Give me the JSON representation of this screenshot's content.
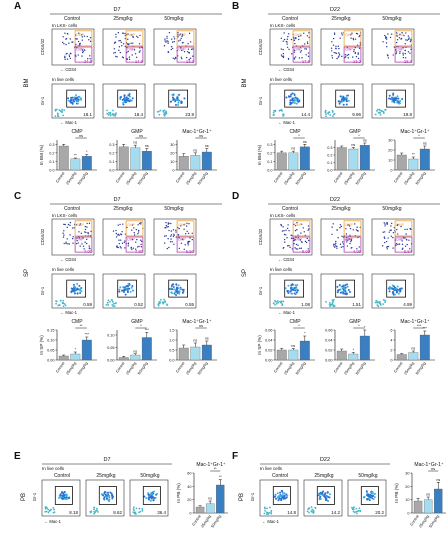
{
  "panels": [
    {
      "letter": "A",
      "day": "D7",
      "tissue": "BM",
      "gate1": "In LKS- cells",
      "gate2": "In live cells",
      "cmp_pct": [
        "24.5",
        "14.9",
        "13.2"
      ],
      "gmp_pct": [
        "",
        "",
        ""
      ],
      "mac_pct": [
        "18.1",
        "18.4",
        "23.9"
      ],
      "bar_ylabel": "In BM (%)",
      "charts": [
        {
          "title": "CMP",
          "yticks": [
            "0.0",
            "0.1",
            "0.2",
            "0.3"
          ],
          "values": [
            0.28,
            0.13,
            0.16
          ],
          "errors": [
            0.02,
            0.01,
            0.02
          ],
          "ymax": 0.35,
          "sig": [
            "**",
            "*"
          ],
          "top_sig": "ns"
        },
        {
          "title": "GMP",
          "yticks": [
            "0.0",
            "0.1",
            "0.2",
            "0.3"
          ],
          "values": [
            0.27,
            0.26,
            0.22
          ],
          "errors": [
            0.03,
            0.03,
            0.03
          ],
          "ymax": 0.35,
          "sig": [
            "ns",
            "ns"
          ],
          "top_sig": "ns"
        },
        {
          "title": "Mac-1⁺Gr-1⁺",
          "yticks": [
            "0",
            "10",
            "20",
            "30"
          ],
          "values": [
            16,
            17,
            21
          ],
          "errors": [
            3,
            3,
            4
          ],
          "ymax": 35,
          "sig": [
            "ns",
            "ns"
          ],
          "top_sig": "ns"
        }
      ]
    },
    {
      "letter": "B",
      "day": "D22",
      "tissue": "BM",
      "gate1": "In LKS- cells",
      "gate2": "In live cells",
      "cmp_pct": [
        "17.6",
        "13.2",
        "18.3"
      ],
      "gmp_pct": [
        "",
        "",
        ""
      ],
      "mac_pct": [
        "14.4",
        "9.96",
        "19.8"
      ],
      "bar_ylabel": "In BM (%)",
      "charts": [
        {
          "title": "CMP",
          "yticks": [
            "0.0",
            "0.1",
            "0.2",
            "0.3"
          ],
          "values": [
            0.2,
            0.2,
            0.27
          ],
          "errors": [
            0.02,
            0.02,
            0.03
          ],
          "ymax": 0.35,
          "sig": [
            "ns",
            "ns"
          ],
          "top_sig": "*"
        },
        {
          "title": "GMP",
          "yticks": [
            "0.0",
            "0.1",
            "0.2",
            "0.3"
          ],
          "values": [
            0.3,
            0.28,
            0.33
          ],
          "errors": [
            0.02,
            0.02,
            0.03
          ],
          "ymax": 0.4,
          "sig": [
            "ns",
            "ns"
          ],
          "top_sig": "*"
        },
        {
          "title": "Mac-1⁺Gr-1⁺",
          "yticks": [
            "0",
            "10",
            "20",
            "30"
          ],
          "values": [
            15,
            11,
            21
          ],
          "errors": [
            2,
            2,
            3
          ],
          "ymax": 30,
          "sig": [
            "**",
            "ns"
          ],
          "top_sig": "*"
        }
      ]
    },
    {
      "letter": "C",
      "day": "D7",
      "tissue": "SP",
      "gate1": "In LKS- cells",
      "gate2": "In live cells",
      "cmp_pct": [
        "7.00",
        "7.80",
        "5.50"
      ],
      "gmp_pct": [
        "",
        "",
        ""
      ],
      "mac_pct": [
        "0.59",
        "0.52",
        "0.55"
      ],
      "bar_ylabel": "In SP (%)",
      "charts": [
        {
          "title": "CMP",
          "yticks": [
            "0.00",
            "0.05",
            "0.10",
            "0.15"
          ],
          "values": [
            0.02,
            0.03,
            0.1
          ],
          "errors": [
            0.005,
            0.01,
            0.015
          ],
          "ymax": 0.15,
          "sig": [
            "*",
            "***"
          ],
          "top_sig": "**"
        },
        {
          "title": "GMP",
          "yticks": [
            "0.00",
            "0.05",
            "0.10"
          ],
          "values": [
            0.01,
            0.02,
            0.09
          ],
          "errors": [
            0.005,
            0.005,
            0.02
          ],
          "ymax": 0.12,
          "sig": [
            "ns",
            "***"
          ],
          "top_sig": "*"
        },
        {
          "title": "Mac-1⁺Gr-1⁺",
          "yticks": [
            "0.0",
            "0.5",
            "1.0",
            "1.5"
          ],
          "values": [
            0.6,
            0.65,
            0.75
          ],
          "errors": [
            0.15,
            0.2,
            0.2
          ],
          "ymax": 1.5,
          "sig": [
            "ns",
            "ns"
          ],
          "top_sig": "ns"
        }
      ]
    },
    {
      "letter": "D",
      "day": "D22",
      "tissue": "SP",
      "gate1": "In LKS- cells",
      "gate2": "In live cells",
      "cmp_pct": [
        "8.05",
        "4.09",
        "5.54"
      ],
      "gmp_pct": [
        "",
        "",
        ""
      ],
      "mac_pct": [
        "1.08",
        "1.51",
        "4.99"
      ],
      "bar_ylabel": "In SP (%)",
      "charts": [
        {
          "title": "CMP",
          "yticks": [
            "0.00",
            "0.02",
            "0.04",
            "0.06"
          ],
          "values": [
            0.02,
            0.02,
            0.038
          ],
          "errors": [
            0.003,
            0.003,
            0.01
          ],
          "ymax": 0.06,
          "sig": [
            "ns",
            "*"
          ],
          "top_sig": "*"
        },
        {
          "title": "GMP",
          "yticks": [
            "0.00",
            "0.02",
            "0.04",
            "0.06"
          ],
          "values": [
            0.018,
            0.012,
            0.048
          ],
          "errors": [
            0.004,
            0.003,
            0.012
          ],
          "ymax": 0.06,
          "sig": [
            "*",
            "*"
          ],
          "top_sig": "*"
        },
        {
          "title": "Mac-1⁺Gr-1⁺",
          "yticks": [
            "0",
            "2",
            "4",
            "6"
          ],
          "values": [
            1.1,
            1.5,
            5
          ],
          "errors": [
            0.2,
            0.3,
            0.8
          ],
          "ymax": 6,
          "sig": [
            "ns",
            "***"
          ],
          "top_sig": "***"
        }
      ]
    }
  ],
  "pb_panels": [
    {
      "letter": "E",
      "day": "D7",
      "tissue": "PB",
      "gate": "In live cells",
      "pct": [
        "8.18",
        "8.62",
        "36.4"
      ],
      "chart": {
        "title": "Mac-1⁺Gr-1⁺",
        "ylabel": "In PB (%)",
        "yticks": [
          "0",
          "20",
          "40",
          "60"
        ],
        "values": [
          9,
          14,
          42
        ],
        "errors": [
          2,
          4,
          8
        ],
        "ymax": 60,
        "sig": [
          "ns",
          "**"
        ],
        "top_sig": "**"
      }
    },
    {
      "letter": "F",
      "day": "D22",
      "tissue": "PB",
      "gate": "In live cells",
      "pct": [
        "14.8",
        "14.2",
        "20.2"
      ],
      "chart": {
        "title": "Mac-1⁺Gr-1⁺",
        "ylabel": "In PB (%)",
        "yticks": [
          "0",
          "10",
          "20",
          "30"
        ],
        "values": [
          9,
          10,
          18
        ],
        "errors": [
          2,
          2,
          5
        ],
        "ymax": 30,
        "sig": [
          "ns",
          "ns"
        ],
        "top_sig": "ns"
      }
    }
  ],
  "groups": [
    "Control",
    "25mg/kg",
    "50mg/kg"
  ],
  "axis": {
    "cd16": "CD16/32",
    "cd34": "CD34",
    "gr1": "Gr-1",
    "mac1": "Mac-1",
    "gmp": "GMP",
    "cmp": "CMP"
  },
  "colors": {
    "control": "#a8a8a8",
    "low": "#a6dcef",
    "high": "#3a7fc1",
    "gate_cmp": "#f0a030",
    "gate_gmp": "#b040b0",
    "dot": "#2a3a9a"
  }
}
